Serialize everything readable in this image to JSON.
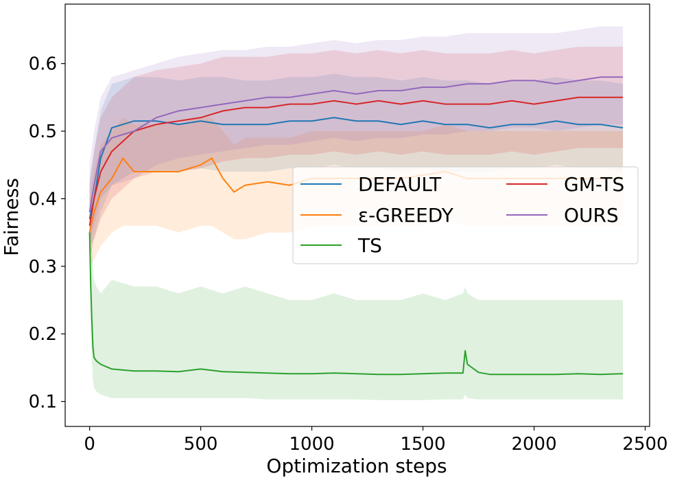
{
  "chart_data": {
    "type": "line",
    "title": "",
    "xlabel": "Optimization steps",
    "ylabel": "Fairness",
    "xlim": [
      -110,
      2520
    ],
    "ylim": [
      0.063,
      0.688
    ],
    "xticks": [
      0,
      500,
      1000,
      1500,
      2000,
      2500
    ],
    "xtick_labels": [
      "0",
      "500",
      "1000",
      "1500",
      "2000",
      "2500"
    ],
    "yticks": [
      0.1,
      0.2,
      0.3,
      0.4,
      0.5,
      0.6
    ],
    "ytick_labels": [
      "0.1",
      "0.2",
      "0.3",
      "0.4",
      "0.5",
      "0.6"
    ],
    "grid": false,
    "legend": {
      "position": "center-right",
      "columns": 2
    },
    "series": [
      {
        "name": "DEFAULT",
        "color": "#1f77b4",
        "x": [
          0,
          20,
          50,
          100,
          200,
          300,
          400,
          500,
          600,
          700,
          800,
          900,
          1000,
          1100,
          1200,
          1300,
          1400,
          1500,
          1600,
          1700,
          1800,
          1900,
          2000,
          2100,
          2200,
          2300,
          2400
        ],
        "y": [
          0.37,
          0.4,
          0.46,
          0.505,
          0.515,
          0.515,
          0.51,
          0.515,
          0.51,
          0.51,
          0.51,
          0.515,
          0.515,
          0.52,
          0.515,
          0.515,
          0.51,
          0.515,
          0.51,
          0.51,
          0.505,
          0.51,
          0.51,
          0.515,
          0.51,
          0.51,
          0.505
        ],
        "upper": [
          0.43,
          0.47,
          0.53,
          0.57,
          0.58,
          0.58,
          0.575,
          0.58,
          0.58,
          0.575,
          0.575,
          0.58,
          0.58,
          0.585,
          0.58,
          0.58,
          0.575,
          0.58,
          0.575,
          0.575,
          0.57,
          0.575,
          0.575,
          0.58,
          0.575,
          0.575,
          0.57
        ],
        "lower": [
          0.33,
          0.34,
          0.38,
          0.42,
          0.44,
          0.44,
          0.44,
          0.445,
          0.44,
          0.44,
          0.44,
          0.445,
          0.445,
          0.45,
          0.445,
          0.445,
          0.44,
          0.445,
          0.44,
          0.44,
          0.44,
          0.445,
          0.445,
          0.45,
          0.445,
          0.445,
          0.44
        ]
      },
      {
        "name": "ε-GREEDY",
        "color": "#ff7f0e",
        "x": [
          0,
          20,
          50,
          100,
          150,
          200,
          300,
          400,
          500,
          550,
          600,
          650,
          700,
          800,
          900,
          1000,
          1100,
          1200,
          1300,
          1400,
          1500,
          1600,
          1700,
          1800,
          1900,
          2000,
          2100,
          2200,
          2300,
          2400
        ],
        "y": [
          0.35,
          0.38,
          0.41,
          0.43,
          0.46,
          0.44,
          0.44,
          0.44,
          0.45,
          0.46,
          0.43,
          0.41,
          0.42,
          0.425,
          0.42,
          0.43,
          0.43,
          0.43,
          0.43,
          0.43,
          0.435,
          0.44,
          0.43,
          0.43,
          0.43,
          0.43,
          0.43,
          0.43,
          0.43,
          0.43
        ],
        "upper": [
          0.4,
          0.44,
          0.48,
          0.5,
          0.52,
          0.51,
          0.51,
          0.51,
          0.52,
          0.52,
          0.5,
          0.48,
          0.49,
          0.49,
          0.49,
          0.5,
          0.5,
          0.5,
          0.5,
          0.5,
          0.5,
          0.51,
          0.5,
          0.5,
          0.5,
          0.5,
          0.5,
          0.5,
          0.5,
          0.5
        ],
        "lower": [
          0.3,
          0.31,
          0.33,
          0.35,
          0.36,
          0.36,
          0.36,
          0.35,
          0.36,
          0.36,
          0.35,
          0.34,
          0.34,
          0.35,
          0.35,
          0.36,
          0.36,
          0.36,
          0.36,
          0.36,
          0.36,
          0.37,
          0.36,
          0.36,
          0.36,
          0.36,
          0.36,
          0.36,
          0.36,
          0.36
        ]
      },
      {
        "name": "TS",
        "color": "#2ca02c",
        "x": [
          0,
          5,
          10,
          15,
          20,
          30,
          50,
          100,
          200,
          300,
          400,
          500,
          600,
          700,
          800,
          900,
          1000,
          1100,
          1200,
          1300,
          1400,
          1500,
          1600,
          1680,
          1690,
          1700,
          1750,
          1800,
          1900,
          2000,
          2100,
          2200,
          2300,
          2400
        ],
        "y": [
          0.35,
          0.27,
          0.22,
          0.18,
          0.165,
          0.16,
          0.155,
          0.148,
          0.145,
          0.145,
          0.144,
          0.148,
          0.144,
          0.143,
          0.142,
          0.141,
          0.141,
          0.142,
          0.141,
          0.14,
          0.14,
          0.141,
          0.142,
          0.142,
          0.175,
          0.155,
          0.143,
          0.14,
          0.14,
          0.14,
          0.14,
          0.141,
          0.14,
          0.141
        ],
        "upper": [
          0.38,
          0.36,
          0.33,
          0.3,
          0.28,
          0.27,
          0.26,
          0.28,
          0.27,
          0.27,
          0.26,
          0.27,
          0.26,
          0.27,
          0.26,
          0.25,
          0.25,
          0.26,
          0.25,
          0.25,
          0.25,
          0.26,
          0.25,
          0.26,
          0.27,
          0.26,
          0.25,
          0.25,
          0.25,
          0.25,
          0.25,
          0.25,
          0.25,
          0.25
        ],
        "lower": [
          0.32,
          0.2,
          0.16,
          0.13,
          0.12,
          0.115,
          0.11,
          0.105,
          0.105,
          0.105,
          0.105,
          0.105,
          0.105,
          0.105,
          0.103,
          0.103,
          0.103,
          0.103,
          0.103,
          0.102,
          0.102,
          0.102,
          0.103,
          0.103,
          0.11,
          0.105,
          0.103,
          0.103,
          0.103,
          0.103,
          0.103,
          0.103,
          0.103,
          0.103
        ]
      },
      {
        "name": "GM-TS",
        "color": "#d62728",
        "x": [
          0,
          20,
          50,
          100,
          200,
          300,
          400,
          500,
          600,
          700,
          800,
          900,
          1000,
          1100,
          1200,
          1300,
          1400,
          1500,
          1600,
          1700,
          1800,
          1900,
          2000,
          2100,
          2200,
          2300,
          2400
        ],
        "y": [
          0.36,
          0.4,
          0.44,
          0.47,
          0.5,
          0.51,
          0.515,
          0.52,
          0.53,
          0.535,
          0.535,
          0.54,
          0.54,
          0.545,
          0.54,
          0.545,
          0.54,
          0.545,
          0.54,
          0.54,
          0.54,
          0.545,
          0.54,
          0.545,
          0.55,
          0.55,
          0.55
        ],
        "upper": [
          0.42,
          0.47,
          0.52,
          0.55,
          0.58,
          0.59,
          0.595,
          0.6,
          0.61,
          0.61,
          0.61,
          0.615,
          0.615,
          0.62,
          0.615,
          0.62,
          0.615,
          0.62,
          0.615,
          0.615,
          0.615,
          0.62,
          0.615,
          0.62,
          0.625,
          0.625,
          0.625
        ],
        "lower": [
          0.31,
          0.34,
          0.37,
          0.4,
          0.43,
          0.44,
          0.44,
          0.445,
          0.455,
          0.46,
          0.46,
          0.465,
          0.465,
          0.47,
          0.465,
          0.47,
          0.465,
          0.47,
          0.465,
          0.465,
          0.465,
          0.47,
          0.465,
          0.47,
          0.475,
          0.475,
          0.475
        ]
      },
      {
        "name": "OURS",
        "color": "#9467bd",
        "x": [
          0,
          20,
          50,
          100,
          200,
          300,
          400,
          500,
          600,
          700,
          800,
          900,
          1000,
          1100,
          1200,
          1300,
          1400,
          1500,
          1600,
          1700,
          1800,
          1900,
          2000,
          2100,
          2200,
          2300,
          2400
        ],
        "y": [
          0.38,
          0.42,
          0.47,
          0.49,
          0.5,
          0.52,
          0.53,
          0.535,
          0.54,
          0.545,
          0.55,
          0.55,
          0.555,
          0.56,
          0.555,
          0.56,
          0.56,
          0.565,
          0.565,
          0.57,
          0.57,
          0.575,
          0.575,
          0.57,
          0.575,
          0.58,
          0.58
        ],
        "upper": [
          0.45,
          0.5,
          0.55,
          0.58,
          0.59,
          0.6,
          0.61,
          0.615,
          0.62,
          0.62,
          0.625,
          0.625,
          0.63,
          0.635,
          0.63,
          0.635,
          0.635,
          0.64,
          0.64,
          0.645,
          0.645,
          0.645,
          0.645,
          0.645,
          0.65,
          0.655,
          0.655
        ],
        "lower": [
          0.33,
          0.36,
          0.4,
          0.42,
          0.43,
          0.45,
          0.46,
          0.465,
          0.47,
          0.475,
          0.48,
          0.48,
          0.485,
          0.49,
          0.485,
          0.49,
          0.49,
          0.495,
          0.495,
          0.5,
          0.5,
          0.505,
          0.505,
          0.5,
          0.505,
          0.51,
          0.51
        ]
      }
    ]
  }
}
